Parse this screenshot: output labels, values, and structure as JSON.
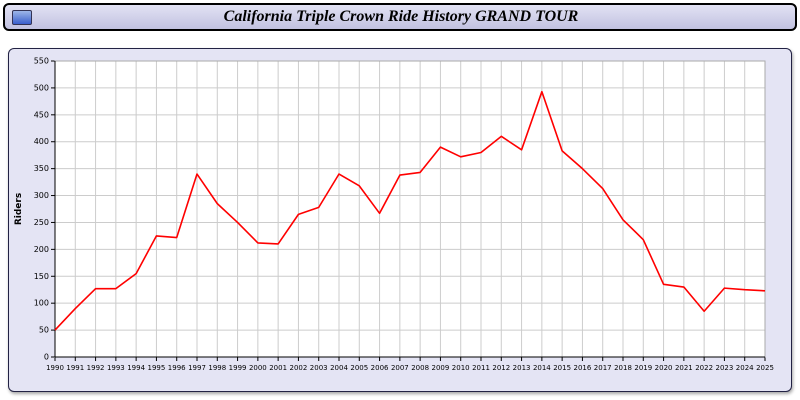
{
  "header": {
    "title": "California Triple Crown Ride History GRAND TOUR",
    "icon": "window-icon"
  },
  "chart_data": {
    "type": "line",
    "title": "California Triple Crown Ride History GRAND TOUR",
    "xlabel": "",
    "ylabel": "Riders",
    "ylim": [
      0,
      550
    ],
    "ytick_step": 50,
    "grid": true,
    "legend": "none",
    "line_color": "#ff0000",
    "plot_bg": "#ffffff",
    "panel_bg": "#e4e4f4",
    "grid_color": "#cccccc",
    "x": [
      1990,
      1991,
      1992,
      1993,
      1994,
      1995,
      1996,
      1997,
      1998,
      1999,
      2000,
      2001,
      2002,
      2003,
      2004,
      2005,
      2006,
      2007,
      2008,
      2009,
      2010,
      2011,
      2012,
      2013,
      2014,
      2015,
      2016,
      2017,
      2018,
      2019,
      2020,
      2021,
      2022,
      2023,
      2024,
      2025
    ],
    "values": [
      50,
      90,
      127,
      127,
      155,
      225,
      222,
      340,
      285,
      250,
      212,
      210,
      265,
      278,
      340,
      318,
      267,
      338,
      343,
      390,
      372,
      380,
      410,
      385,
      493,
      383,
      350,
      313,
      255,
      218,
      135,
      130,
      85,
      128,
      125,
      123
    ]
  }
}
